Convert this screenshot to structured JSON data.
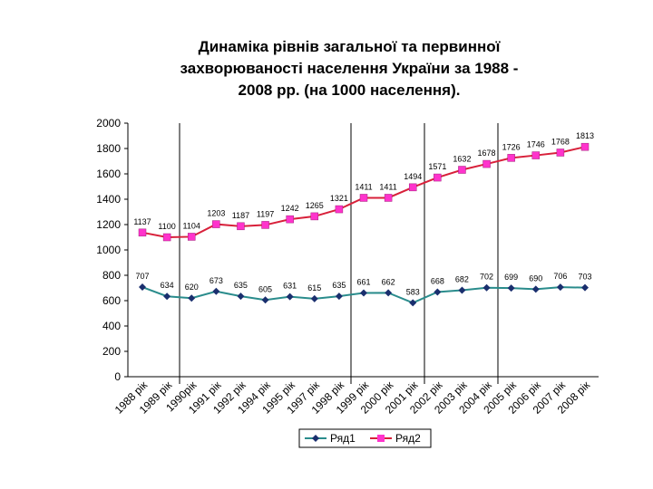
{
  "chart_data": {
    "type": "line",
    "title": [
      "Динаміка рівнів загальної та первинної",
      "захворюваності населення України за 1988 -",
      "2008 рр. (на 1000 населення)."
    ],
    "categories": [
      "1988 рік",
      "1989 рік",
      "1990рік",
      "1991 рік",
      "1992 рік",
      "1994 рік",
      "1995 рік",
      "1997 рік",
      "1998 рік",
      "1999 рік",
      "2000 рік",
      "2001 рік",
      "2002 рік",
      "2003 рік",
      "2004 рік",
      "2005 рік",
      "2006 рік",
      "2007 рік",
      "2008 рік"
    ],
    "series": [
      {
        "name": "Ряд1",
        "color": "#2a8c8c",
        "marker_color": "#1a2f6e",
        "values": [
          707,
          634,
          620,
          673,
          635,
          605,
          631,
          615,
          635,
          661,
          662,
          583,
          668,
          682,
          702,
          699,
          690,
          706,
          703
        ]
      },
      {
        "name": "Ряд2",
        "color": "#d8203a",
        "marker_color": "#ff33cc",
        "values": [
          1137,
          1100,
          1104,
          1203,
          1187,
          1197,
          1242,
          1265,
          1321,
          1411,
          1411,
          1494,
          1571,
          1632,
          1678,
          1726,
          1746,
          1768,
          1813
        ]
      }
    ],
    "ylim": [
      0,
      2000
    ],
    "yticks": [
      0,
      200,
      400,
      600,
      800,
      1000,
      1200,
      1400,
      1600,
      1800,
      2000
    ],
    "legend": "bottom"
  }
}
